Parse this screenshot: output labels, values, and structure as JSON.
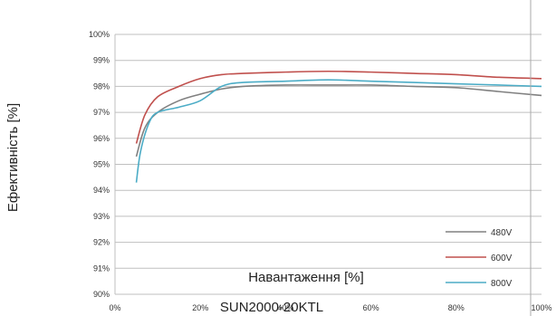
{
  "chart_data": {
    "type": "line",
    "xlabel": "Навантаження [%]",
    "ylabel": "Ефективність [%]",
    "caption": "SUN2000-20KTL",
    "xlim": [
      0,
      100
    ],
    "ylim": [
      90,
      100
    ],
    "x_ticks": [
      0,
      20,
      40,
      60,
      80,
      100
    ],
    "y_ticks": [
      90,
      91,
      92,
      93,
      94,
      95,
      96,
      97,
      98,
      99,
      100
    ],
    "x_tick_labels": [
      "0%",
      "20%",
      "40%",
      "60%",
      "80%",
      "100%"
    ],
    "y_tick_labels": [
      "90%",
      "91%",
      "92%",
      "93%",
      "94%",
      "95%",
      "96%",
      "97%",
      "98%",
      "99%",
      "100%"
    ],
    "grid": "horizontal",
    "legend_position": "bottom-right",
    "series": [
      {
        "name": "480V",
        "color": "#808080",
        "x": [
          5,
          7,
          10,
          15,
          20,
          25,
          30,
          40,
          50,
          60,
          70,
          80,
          90,
          100
        ],
        "y": [
          95.3,
          96.4,
          97.0,
          97.45,
          97.7,
          97.9,
          98.0,
          98.05,
          98.05,
          98.05,
          98.0,
          97.95,
          97.8,
          97.65
        ]
      },
      {
        "name": "600V",
        "color": "#c0504d",
        "x": [
          5,
          7,
          10,
          15,
          20,
          25,
          30,
          40,
          50,
          60,
          70,
          80,
          90,
          100
        ],
        "y": [
          95.8,
          96.9,
          97.6,
          98.0,
          98.3,
          98.45,
          98.5,
          98.55,
          98.58,
          98.55,
          98.5,
          98.45,
          98.35,
          98.3
        ]
      },
      {
        "name": "800V",
        "color": "#4bacc6",
        "x": [
          5,
          6,
          8,
          10,
          15,
          20,
          25,
          30,
          40,
          50,
          60,
          70,
          80,
          90,
          100
        ],
        "y": [
          94.3,
          95.5,
          96.6,
          97.0,
          97.2,
          97.45,
          98.0,
          98.15,
          98.2,
          98.25,
          98.2,
          98.15,
          98.1,
          98.05,
          98.0
        ]
      }
    ]
  }
}
